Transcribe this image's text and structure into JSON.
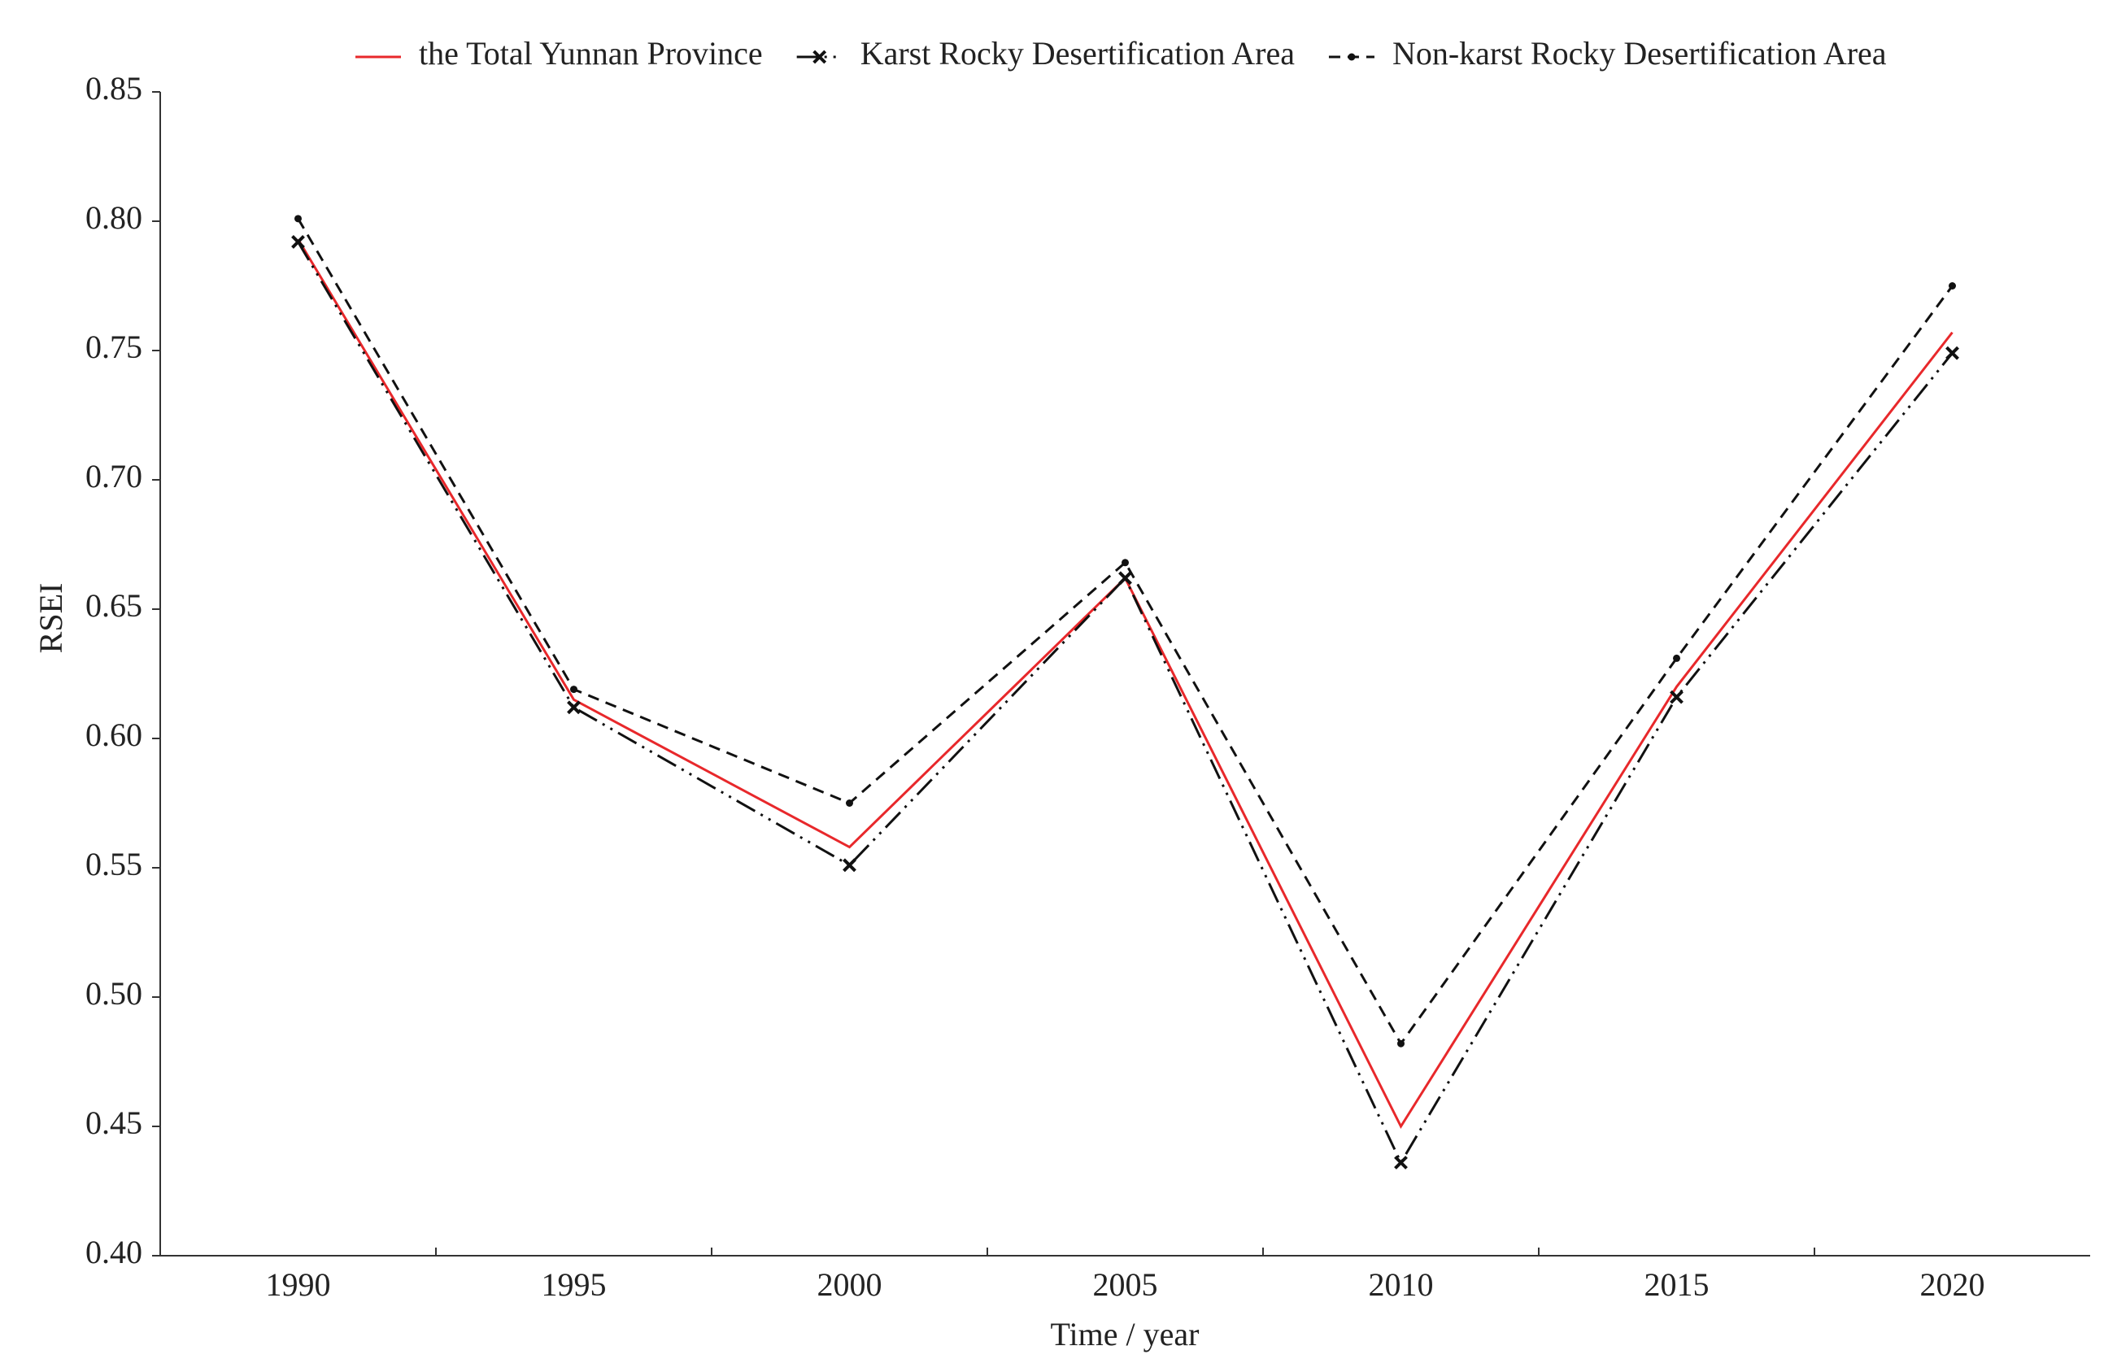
{
  "chart_data": {
    "type": "line",
    "x_label": "Time / year",
    "y_label": "RSEI",
    "categories": [
      "1990",
      "1995",
      "2000",
      "2005",
      "2010",
      "2015",
      "2020"
    ],
    "ylim": [
      0.4,
      0.85
    ],
    "yticks": [
      {
        "value": 0.4,
        "label": "0.40"
      },
      {
        "value": 0.45,
        "label": "0.45"
      },
      {
        "value": 0.5,
        "label": "0.50"
      },
      {
        "value": 0.55,
        "label": "0.55"
      },
      {
        "value": 0.6,
        "label": "0.60"
      },
      {
        "value": 0.65,
        "label": "0.65"
      },
      {
        "value": 0.7,
        "label": "0.70"
      },
      {
        "value": 0.75,
        "label": "0.75"
      },
      {
        "value": 0.8,
        "label": "0.80"
      },
      {
        "value": 0.85,
        "label": "0.85"
      }
    ],
    "legend": "top",
    "series": [
      {
        "name": "the Total Yunnan Province",
        "color": "#e8282b",
        "style": "solid",
        "marker": "none",
        "values": [
          0.793,
          0.615,
          0.558,
          0.662,
          0.45,
          0.62,
          0.757
        ]
      },
      {
        "name": "Karst Rocky Desertification Area",
        "color": "#111111",
        "style": "dash-dot-dot",
        "marker": "x",
        "values": [
          0.792,
          0.612,
          0.551,
          0.662,
          0.436,
          0.616,
          0.749
        ]
      },
      {
        "name": "Non-karst Rocky Desertification Area",
        "color": "#111111",
        "style": "dashed",
        "marker": "dot",
        "values": [
          0.801,
          0.619,
          0.575,
          0.668,
          0.482,
          0.631,
          0.775
        ]
      }
    ]
  }
}
